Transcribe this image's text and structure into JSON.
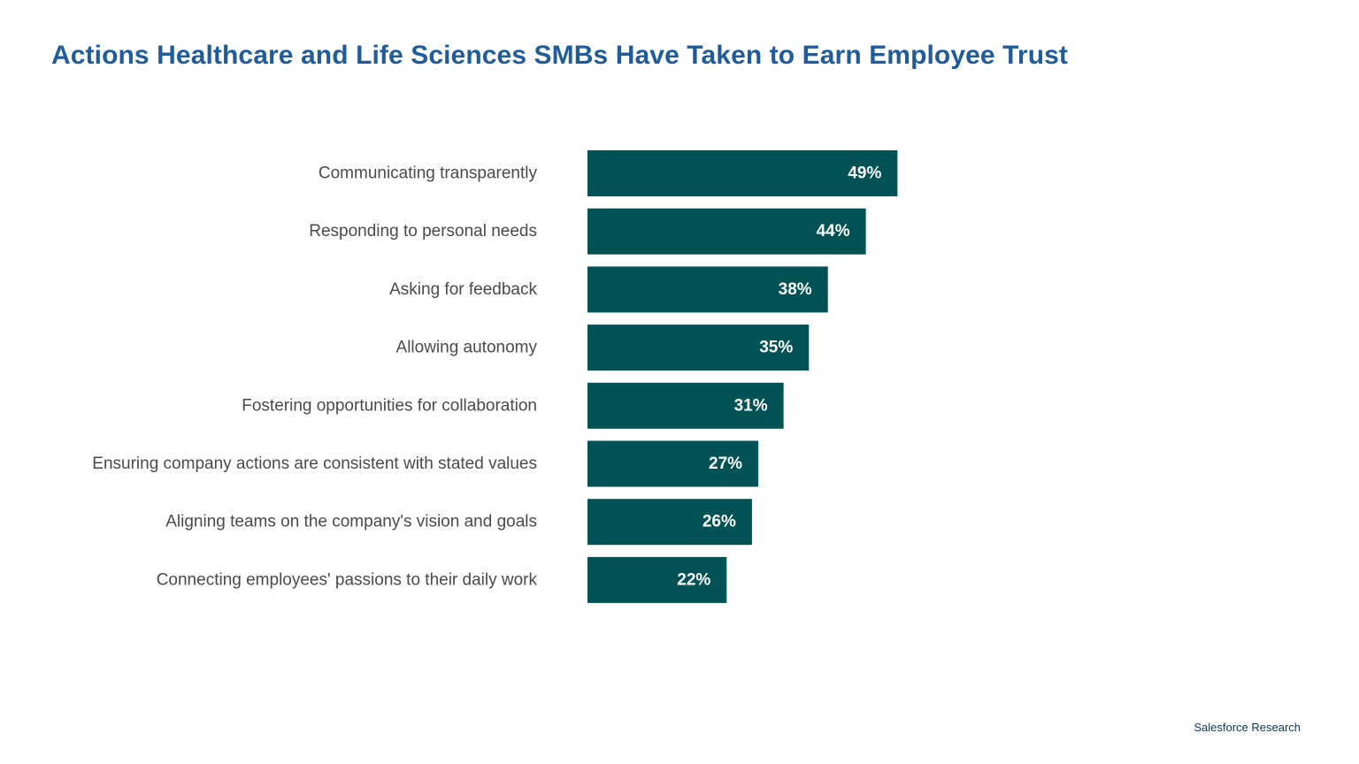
{
  "title": "Actions Healthcare and Life Sciences SMBs Have Taken to Earn Employee Trust",
  "footer": "Salesforce Research",
  "colors": {
    "title": "#1f5c99",
    "bar": "#015254",
    "bar_label": "#ffffff",
    "category_label": "#4a4a4a",
    "footer": "#0b3a57"
  },
  "chart_data": {
    "type": "bar",
    "orientation": "horizontal",
    "title": "Actions Healthcare and Life Sciences SMBs Have Taken to Earn Employee Trust",
    "categories": [
      "Communicating transparently",
      "Responding to personal needs",
      "Asking for feedback",
      "Allowing autonomy",
      "Fostering opportunities for collaboration",
      "Ensuring company actions are consistent with stated values",
      "Aligning teams on the company's vision and goals",
      "Connecting employees' passions to their daily work"
    ],
    "values": [
      49,
      44,
      38,
      35,
      31,
      27,
      26,
      22
    ],
    "value_labels": [
      "49%",
      "44%",
      "38%",
      "35%",
      "31%",
      "27%",
      "26%",
      "22%"
    ],
    "unit": "%",
    "xlim": [
      0,
      100
    ],
    "grid": false,
    "legend": "none",
    "data_labels": "inside-end"
  }
}
